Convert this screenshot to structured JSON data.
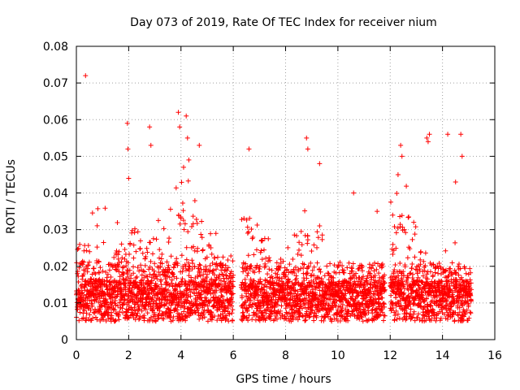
{
  "chart_data": {
    "type": "scatter",
    "title": "Day 073 of 2019, Rate Of TEC Index for receiver nium",
    "xlabel": "GPS time / hours",
    "ylabel": "ROTI / TECUs",
    "xlim": [
      0,
      16
    ],
    "ylim": [
      0,
      0.08
    ],
    "xticks": [
      0,
      2,
      4,
      6,
      8,
      10,
      12,
      14,
      16
    ],
    "yticks": [
      0,
      0.01,
      0.02,
      0.03,
      0.04,
      0.05,
      0.06,
      0.07,
      0.08
    ],
    "xtick_labels": [
      "0",
      "2",
      "4",
      "6",
      "8",
      "10",
      "12",
      "14",
      "16"
    ],
    "ytick_labels": [
      "0",
      "0.01",
      "0.02",
      "0.03",
      "0.04",
      "0.05",
      "0.06",
      "0.07",
      "0.08"
    ],
    "grid": true,
    "marker": "+",
    "color": "#ff0000",
    "bursts": [
      [
        0.0,
        0.6,
        0.022
      ],
      [
        0.6,
        1.3,
        0.03
      ],
      [
        1.3,
        1.7,
        0.02
      ],
      [
        1.7,
        2.4,
        0.026
      ],
      [
        2.4,
        3.3,
        0.024
      ],
      [
        3.3,
        3.8,
        0.028
      ],
      [
        3.8,
        4.6,
        0.034
      ],
      [
        4.6,
        5.3,
        0.022
      ],
      [
        5.3,
        6.0,
        0.02
      ],
      [
        6.3,
        7.5,
        0.03
      ],
      [
        7.5,
        8.3,
        0.018
      ],
      [
        8.3,
        9.5,
        0.026
      ],
      [
        9.5,
        10.6,
        0.012
      ],
      [
        10.6,
        11.3,
        0.016
      ],
      [
        11.3,
        11.8,
        0.014
      ],
      [
        12.0,
        12.9,
        0.03
      ],
      [
        12.9,
        13.4,
        0.02
      ],
      [
        13.4,
        14.0,
        0.012
      ],
      [
        14.0,
        14.6,
        0.016
      ],
      [
        14.6,
        15.1,
        0.01
      ]
    ],
    "gaps": [
      [
        6.0,
        6.3
      ],
      [
        11.8,
        12.0
      ]
    ],
    "outliers": [
      [
        0.35,
        0.072
      ],
      [
        1.95,
        0.059
      ],
      [
        1.97,
        0.052
      ],
      [
        2.8,
        0.058
      ],
      [
        2.85,
        0.053
      ],
      [
        3.9,
        0.062
      ],
      [
        3.95,
        0.058
      ],
      [
        4.2,
        0.061
      ],
      [
        4.25,
        0.055
      ],
      [
        4.3,
        0.049
      ],
      [
        4.1,
        0.047
      ],
      [
        4.7,
        0.053
      ],
      [
        6.6,
        0.052
      ],
      [
        8.8,
        0.055
      ],
      [
        8.85,
        0.052
      ],
      [
        9.3,
        0.048
      ],
      [
        12.4,
        0.053
      ],
      [
        12.45,
        0.05
      ],
      [
        13.4,
        0.055
      ],
      [
        13.45,
        0.054
      ],
      [
        13.5,
        0.056
      ],
      [
        14.2,
        0.056
      ],
      [
        14.7,
        0.056
      ],
      [
        14.75,
        0.05
      ],
      [
        14.5,
        0.043
      ],
      [
        12.3,
        0.045
      ],
      [
        2.0,
        0.044
      ],
      [
        10.6,
        0.04
      ],
      [
        11.5,
        0.035
      ]
    ]
  }
}
